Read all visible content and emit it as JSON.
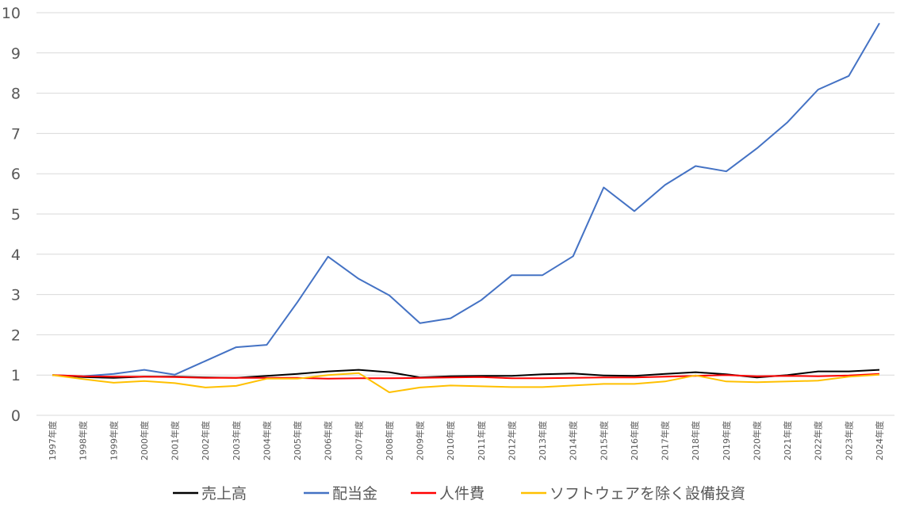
{
  "chart_data": {
    "type": "line",
    "title": "",
    "xlabel": "",
    "ylabel": "",
    "ylim": [
      0,
      10
    ],
    "yticks": [
      "0",
      "1",
      "2",
      "3",
      "4",
      "5",
      "6",
      "7",
      "8",
      "9",
      "10"
    ],
    "grid": true,
    "legend_position": "bottom",
    "categories": [
      "1997年度",
      "1998年度",
      "1999年度",
      "2000年度",
      "2001年度",
      "2002年度",
      "2003年度",
      "2004年度",
      "2005年度",
      "2006年度",
      "2007年度",
      "2008年度",
      "2009年度",
      "2010年度",
      "2011年度",
      "2012年度",
      "2013年度",
      "2014年度",
      "2015年度",
      "2016年度",
      "2017年度",
      "2018年度",
      "2019年度",
      "2020年度",
      "2021年度",
      "2022年度",
      "2023年度",
      "2024年度"
    ],
    "series": [
      {
        "name": "売上高",
        "color": "#000000",
        "values": [
          1.0,
          0.95,
          0.93,
          0.96,
          0.96,
          0.94,
          0.93,
          0.98,
          1.03,
          1.09,
          1.13,
          1.07,
          0.94,
          0.97,
          0.98,
          0.98,
          1.02,
          1.04,
          0.99,
          0.98,
          1.03,
          1.07,
          1.02,
          0.94,
          1.0,
          1.09,
          1.09,
          1.13
        ]
      },
      {
        "name": "配当金",
        "color": "#4472C4",
        "values": [
          1.0,
          0.97,
          1.03,
          1.13,
          1.01,
          1.35,
          1.69,
          1.75,
          2.81,
          3.94,
          3.39,
          2.98,
          2.29,
          2.41,
          2.86,
          3.48,
          3.48,
          3.95,
          5.66,
          5.07,
          5.72,
          6.19,
          6.06,
          6.63,
          7.28,
          8.09,
          8.43,
          9.74
        ]
      },
      {
        "name": "人件費",
        "color": "#FF0000",
        "values": [
          1.0,
          0.97,
          0.96,
          0.96,
          0.95,
          0.93,
          0.93,
          0.93,
          0.93,
          0.91,
          0.92,
          0.92,
          0.93,
          0.94,
          0.95,
          0.92,
          0.92,
          0.93,
          0.94,
          0.94,
          0.96,
          0.98,
          1.0,
          0.97,
          0.98,
          0.97,
          0.99,
          1.03
        ]
      },
      {
        "name": "ソフトウェアを除く設備投資",
        "color": "#FFC000",
        "values": [
          1.0,
          0.9,
          0.81,
          0.85,
          0.8,
          0.69,
          0.73,
          0.91,
          0.91,
          1.0,
          1.05,
          0.57,
          0.69,
          0.74,
          0.72,
          0.7,
          0.7,
          0.74,
          0.78,
          0.78,
          0.84,
          0.99,
          0.84,
          0.82,
          0.84,
          0.86,
          0.96,
          1.01
        ]
      }
    ]
  }
}
